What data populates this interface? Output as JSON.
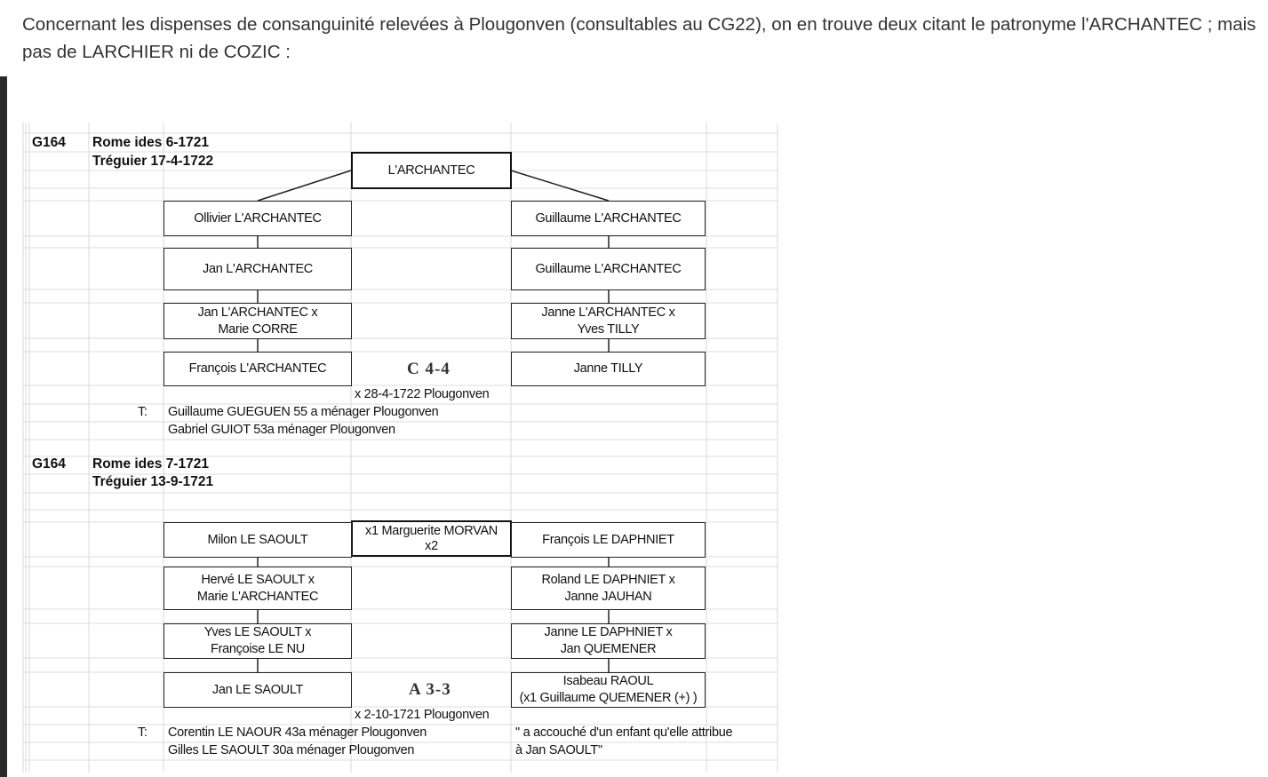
{
  "intro": {
    "text": "Concernant les dispenses de consanguinité relevées à Plougonven (consultables au CG22), on en trouve deux citant le patronyme l'ARCHANTEC ; mais pas de LARCHIER ni de COZIC :"
  },
  "tree1": {
    "cote": "G164",
    "rome": "Rome ides 6-1721",
    "treguier": "Tréguier 17-4-1722",
    "root": "L'ARCHANTEC",
    "left": [
      "Ollivier L'ARCHANTEC",
      "Jan L'ARCHANTEC",
      "Jan L'ARCHANTEC x\nMarie CORRE",
      "François L'ARCHANTEC"
    ],
    "right": [
      "Guillaume L'ARCHANTEC",
      "Guillaume L'ARCHANTEC",
      "Janne L'ARCHANTEC x\nYves TILLY",
      "Janne TILLY"
    ],
    "degree": "C 4-4",
    "marriage": "x 28-4-1722 Plougonven",
    "witness_label": "T:",
    "witnesses": [
      "Guillaume GUEGUEN 55 a ménager Plougonven",
      "Gabriel GUIOT 53a ménager Plougonven"
    ]
  },
  "tree2": {
    "cote": "G164",
    "rome": "Rome ides 7-1721",
    "treguier": "Tréguier 13-9-1721",
    "middle": "x1 Marguerite MORVAN\nx2",
    "left": [
      "Milon LE SAOULT",
      "Hervé LE SAOULT x\nMarie L'ARCHANTEC",
      "Yves LE SAOULT x\nFrançoise LE NU",
      "Jan LE SAOULT"
    ],
    "right": [
      "François LE DAPHNIET",
      "Roland LE DAPHNIET x\nJanne JAUHAN",
      "Janne LE DAPHNIET x\nJan QUEMENER",
      "Isabeau RAOUL\n(x1 Guillaume QUEMENER (+) )"
    ],
    "degree": "A 3-3",
    "marriage": "x 2-10-1721 Plougonven",
    "witness_label": "T:",
    "witnesses": [
      "Corentin LE NAOUR 43a ménager Plougonven",
      "Gilles LE SAOULT 30a ménager Plougonven"
    ],
    "note": [
      "\" a accouché d'un enfant qu'elle attribue",
      "à Jan SAOULT\""
    ]
  }
}
